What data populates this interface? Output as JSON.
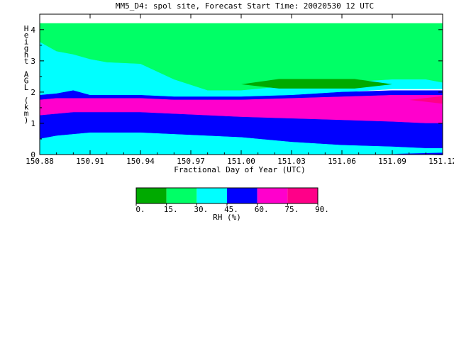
{
  "chart_data": {
    "type": "heatmap",
    "title": "MM5_D4: spol site,  Forecast Start Time: 20020530 12 UTC",
    "xlabel": "Fractional Day of Year (UTC)",
    "ylabel": "Height AGL (km)",
    "x_ticks": [
      "150.88",
      "150.91",
      "150.94",
      "150.97",
      "151.00",
      "151.03",
      "151.06",
      "151.09",
      "151.12"
    ],
    "x_tick_values": [
      150.88,
      150.91,
      150.94,
      150.97,
      151.0,
      151.03,
      151.06,
      151.09,
      151.12
    ],
    "y_ticks": [
      "0",
      "1",
      "2",
      "3",
      "4"
    ],
    "y_tick_values": [
      0,
      1,
      2,
      3,
      4
    ],
    "xlim": [
      150.88,
      151.12
    ],
    "ylim": [
      0,
      4.2
    ],
    "grid": false,
    "x": [
      150.88,
      150.89,
      150.9,
      150.91,
      150.92,
      150.94,
      150.96,
      150.98,
      151.0,
      151.03,
      151.06,
      151.09,
      151.11,
      151.12
    ],
    "bands": [
      {
        "level": "15-30",
        "color": "#00ff66",
        "bottom": [
          2.6,
          2.3,
          2.2,
          2.1,
          2.1,
          2.1,
          2.0,
          2.0,
          2.0,
          2.1,
          2.2,
          2.3,
          2.3,
          2.3
        ],
        "top": [
          4.2,
          4.2,
          4.2,
          4.2,
          4.2,
          4.2,
          4.2,
          4.2,
          4.2,
          4.2,
          4.2,
          4.2,
          4.2,
          4.2
        ]
      },
      {
        "level": "30-45",
        "color": "#00ffff",
        "bottom": [
          1.9,
          1.9,
          2.0,
          1.9,
          1.9,
          1.9,
          1.85,
          1.8,
          1.8,
          1.9,
          2.0,
          2.1,
          2.1,
          2.1
        ],
        "top": [
          3.6,
          3.3,
          3.2,
          3.05,
          2.95,
          2.9,
          2.4,
          2.05,
          2.05,
          2.2,
          2.3,
          2.4,
          2.4,
          2.3
        ]
      },
      {
        "level": "45-60",
        "color": "#0000ff",
        "bottom": [
          1.75,
          1.75,
          1.8,
          1.8,
          1.8,
          1.8,
          1.75,
          1.75,
          1.75,
          1.8,
          1.85,
          1.9,
          1.9,
          1.9
        ],
        "top": [
          1.9,
          1.95,
          2.05,
          1.9,
          1.9,
          1.9,
          1.85,
          1.85,
          1.85,
          1.9,
          2.0,
          2.05,
          2.05,
          2.05
        ]
      },
      {
        "level": "60-75",
        "color": "#ff00cc",
        "bottom": [
          1.25,
          1.3,
          1.35,
          1.35,
          1.35,
          1.35,
          1.3,
          1.25,
          1.2,
          1.15,
          1.1,
          1.05,
          1.0,
          1.0
        ],
        "top": [
          1.75,
          1.8,
          1.8,
          1.8,
          1.8,
          1.8,
          1.75,
          1.75,
          1.75,
          1.8,
          1.85,
          1.9,
          1.9,
          1.9
        ]
      },
      {
        "level": "45-60",
        "color": "#0000ff",
        "bottom": [
          0.5,
          0.6,
          0.65,
          0.7,
          0.7,
          0.7,
          0.65,
          0.6,
          0.55,
          0.4,
          0.3,
          0.25,
          0.2,
          0.2
        ],
        "top": [
          1.25,
          1.3,
          1.35,
          1.35,
          1.35,
          1.35,
          1.3,
          1.25,
          1.2,
          1.15,
          1.1,
          1.05,
          1.0,
          1.0
        ]
      },
      {
        "level": "30-45",
        "color": "#00ffff",
        "bottom": [
          0,
          0,
          0,
          0,
          0,
          0,
          0,
          0,
          0,
          0,
          0,
          0,
          0,
          0
        ],
        "top": [
          0.5,
          0.6,
          0.65,
          0.7,
          0.7,
          0.7,
          0.65,
          0.6,
          0.55,
          0.4,
          0.3,
          0.25,
          0.2,
          0.2
        ]
      }
    ],
    "features": [
      {
        "level": "0-15",
        "color": "#00aa00",
        "shape": "lens",
        "x_range": [
          151.0,
          151.09
        ],
        "y_center": 2.25,
        "half_height": 0.17
      },
      {
        "level": "75-90",
        "color": "#ff0088",
        "shape": "wedge",
        "x_range": [
          151.1,
          151.12
        ],
        "y_center": 1.75,
        "half_height": 0.12
      },
      {
        "level": "45-60",
        "color": "#0000ff",
        "shape": "wedge",
        "x_range": [
          151.09,
          151.12
        ],
        "y_center": 0.02,
        "half_height": 0.04
      }
    ],
    "colorbar": {
      "label": "RH (%)",
      "tick_labels": [
        "0.",
        "15.",
        "30.",
        "45.",
        "60.",
        "75.",
        "90."
      ],
      "colors": [
        "#00aa00",
        "#00ff66",
        "#00ffff",
        "#0000ff",
        "#ff00cc",
        "#ff0088"
      ]
    }
  }
}
